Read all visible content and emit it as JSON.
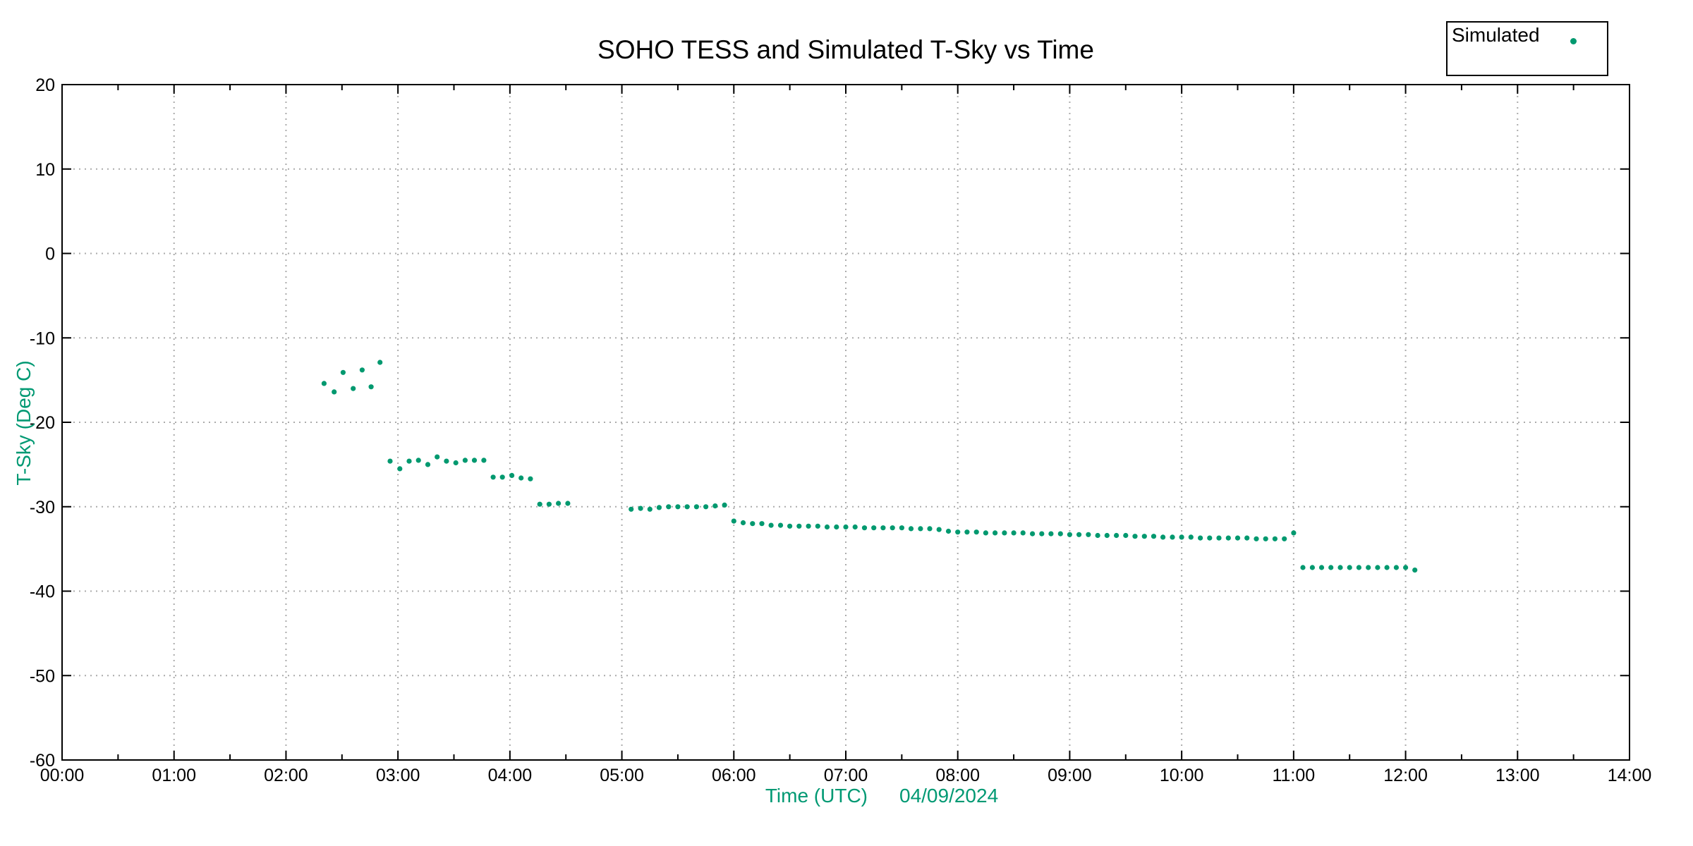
{
  "colors": {
    "marker_teal": "#00996F",
    "axis_title_green": "#009973",
    "grid_gray": "#ababab",
    "axis_black": "#000000",
    "background": "#ffffff"
  },
  "chart_data": {
    "type": "scatter",
    "title": "SOHO TESS and Simulated T-Sky vs Time",
    "xlabel": "Time (UTC)",
    "xlabel_date": "04/09/2024",
    "ylabel": "T-Sky (Deg C)",
    "xlim_hours": [
      0,
      14
    ],
    "ylim": [
      -60,
      20
    ],
    "grid": "dotted",
    "x_ticks": [
      {
        "hour": 0,
        "label": "00:00"
      },
      {
        "hour": 1,
        "label": "01:00"
      },
      {
        "hour": 2,
        "label": "02:00"
      },
      {
        "hour": 3,
        "label": "03:00"
      },
      {
        "hour": 4,
        "label": "04:00"
      },
      {
        "hour": 5,
        "label": "05:00"
      },
      {
        "hour": 6,
        "label": "06:00"
      },
      {
        "hour": 7,
        "label": "07:00"
      },
      {
        "hour": 8,
        "label": "08:00"
      },
      {
        "hour": 9,
        "label": "09:00"
      },
      {
        "hour": 10,
        "label": "10:00"
      },
      {
        "hour": 11,
        "label": "11:00"
      },
      {
        "hour": 12,
        "label": "12:00"
      },
      {
        "hour": 13,
        "label": "13:00"
      },
      {
        "hour": 14,
        "label": "14:00"
      }
    ],
    "x_minor_tick_step_hours": 0.5,
    "y_ticks": [
      20,
      10,
      0,
      -10,
      -20,
      -30,
      -40,
      -50,
      -60
    ],
    "legend": {
      "label": "Simulated",
      "marker": "dot",
      "position": "top-right-outside"
    },
    "series": [
      {
        "name": "Simulated",
        "color": "#00996F",
        "marker": "dot",
        "points": [
          [
            2.34,
            -15.4
          ],
          [
            2.43,
            -16.4
          ],
          [
            2.51,
            -14.1
          ],
          [
            2.6,
            -16.0
          ],
          [
            2.68,
            -13.8
          ],
          [
            2.76,
            -15.8
          ],
          [
            2.84,
            -12.9
          ],
          [
            2.93,
            -24.6
          ],
          [
            3.017,
            -25.5
          ],
          [
            3.1,
            -24.6
          ],
          [
            3.183,
            -24.5
          ],
          [
            3.267,
            -25.0
          ],
          [
            3.35,
            -24.1
          ],
          [
            3.433,
            -24.6
          ],
          [
            3.517,
            -24.8
          ],
          [
            3.6,
            -24.5
          ],
          [
            3.683,
            -24.5
          ],
          [
            3.767,
            -24.5
          ],
          [
            3.85,
            -26.5
          ],
          [
            3.933,
            -26.5
          ],
          [
            4.017,
            -26.3
          ],
          [
            4.1,
            -26.6
          ],
          [
            4.183,
            -26.7
          ],
          [
            4.267,
            -29.7
          ],
          [
            4.35,
            -29.7
          ],
          [
            4.433,
            -29.6
          ],
          [
            4.517,
            -29.6
          ],
          [
            5.083,
            -30.3
          ],
          [
            5.167,
            -30.2
          ],
          [
            5.25,
            -30.3
          ],
          [
            5.333,
            -30.1
          ],
          [
            5.417,
            -30.0
          ],
          [
            5.5,
            -30.0
          ],
          [
            5.583,
            -30.0
          ],
          [
            5.667,
            -30.0
          ],
          [
            5.75,
            -30.0
          ],
          [
            5.833,
            -29.9
          ],
          [
            5.917,
            -29.8
          ],
          [
            6.0,
            -31.7
          ],
          [
            6.083,
            -31.9
          ],
          [
            6.167,
            -32.0
          ],
          [
            6.25,
            -32.0
          ],
          [
            6.333,
            -32.2
          ],
          [
            6.417,
            -32.2
          ],
          [
            6.5,
            -32.3
          ],
          [
            6.583,
            -32.3
          ],
          [
            6.667,
            -32.3
          ],
          [
            6.75,
            -32.3
          ],
          [
            6.833,
            -32.4
          ],
          [
            6.917,
            -32.4
          ],
          [
            7.0,
            -32.4
          ],
          [
            7.083,
            -32.4
          ],
          [
            7.167,
            -32.5
          ],
          [
            7.25,
            -32.5
          ],
          [
            7.333,
            -32.5
          ],
          [
            7.417,
            -32.5
          ],
          [
            7.5,
            -32.5
          ],
          [
            7.583,
            -32.6
          ],
          [
            7.667,
            -32.6
          ],
          [
            7.75,
            -32.6
          ],
          [
            7.833,
            -32.7
          ],
          [
            7.917,
            -32.9
          ],
          [
            8.0,
            -33.0
          ],
          [
            8.083,
            -33.0
          ],
          [
            8.167,
            -33.0
          ],
          [
            8.25,
            -33.1
          ],
          [
            8.333,
            -33.1
          ],
          [
            8.417,
            -33.1
          ],
          [
            8.5,
            -33.1
          ],
          [
            8.583,
            -33.1
          ],
          [
            8.667,
            -33.2
          ],
          [
            8.75,
            -33.2
          ],
          [
            8.833,
            -33.2
          ],
          [
            8.917,
            -33.2
          ],
          [
            9.0,
            -33.3
          ],
          [
            9.083,
            -33.3
          ],
          [
            9.167,
            -33.3
          ],
          [
            9.25,
            -33.4
          ],
          [
            9.333,
            -33.4
          ],
          [
            9.417,
            -33.4
          ],
          [
            9.5,
            -33.4
          ],
          [
            9.583,
            -33.5
          ],
          [
            9.667,
            -33.5
          ],
          [
            9.75,
            -33.5
          ],
          [
            9.833,
            -33.6
          ],
          [
            9.917,
            -33.6
          ],
          [
            10.0,
            -33.6
          ],
          [
            10.083,
            -33.6
          ],
          [
            10.167,
            -33.7
          ],
          [
            10.25,
            -33.7
          ],
          [
            10.333,
            -33.7
          ],
          [
            10.417,
            -33.7
          ],
          [
            10.5,
            -33.7
          ],
          [
            10.583,
            -33.7
          ],
          [
            10.667,
            -33.8
          ],
          [
            10.75,
            -33.8
          ],
          [
            10.833,
            -33.8
          ],
          [
            10.917,
            -33.8
          ],
          [
            11.0,
            -33.1
          ],
          [
            11.083,
            -37.2
          ],
          [
            11.167,
            -37.2
          ],
          [
            11.25,
            -37.2
          ],
          [
            11.333,
            -37.2
          ],
          [
            11.417,
            -37.2
          ],
          [
            11.5,
            -37.2
          ],
          [
            11.583,
            -37.2
          ],
          [
            11.667,
            -37.2
          ],
          [
            11.75,
            -37.2
          ],
          [
            11.833,
            -37.2
          ],
          [
            11.917,
            -37.2
          ],
          [
            12.0,
            -37.2
          ],
          [
            12.083,
            -37.5
          ]
        ]
      }
    ]
  }
}
